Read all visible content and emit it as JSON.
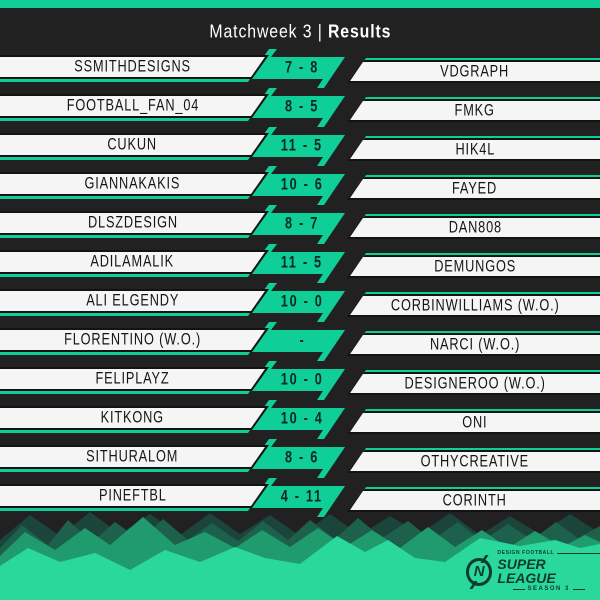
{
  "header": {
    "title_regular": "Matchweek 3",
    "separator": "|",
    "title_bold": "Results"
  },
  "rows": [
    {
      "home": "SSMITHDESIGNS",
      "score": "7 - 8",
      "away": "VDGRAPH"
    },
    {
      "home": "FOOTBALL_FAN_04",
      "score": "8 - 5",
      "away": "FMKG"
    },
    {
      "home": "CUKUN",
      "score": "11 - 5",
      "away": "HIK4L"
    },
    {
      "home": "GIANNAKAKIS",
      "score": "10 - 6",
      "away": "FAYED"
    },
    {
      "home": "DLSZDESIGN",
      "score": "8 - 7",
      "away": "DAN808"
    },
    {
      "home": "ADILAMALIK",
      "score": "11 - 5",
      "away": "DEMUNGOS"
    },
    {
      "home": "ALI ELGENDY",
      "score": "10 - 0",
      "away": "CORBINWILLIAMS (W.O.)"
    },
    {
      "home": "FLORENTINO (W.O.)",
      "score": "-",
      "away": "NARCI (W.O.)"
    },
    {
      "home": "FELIPLAYZ",
      "score": "10 - 0",
      "away": "DESIGNEROO (W.O.)"
    },
    {
      "home": "KITKONG",
      "score": "10 - 4",
      "away": "ONI"
    },
    {
      "home": "SITHURALOM",
      "score": "8 - 6",
      "away": "OTHYCREATIVE"
    },
    {
      "home": "PINEFTBL",
      "score": "4 - 11",
      "away": "CORINTH"
    }
  ],
  "footer_logo": {
    "badge_letter": "N",
    "brand_small": "DESIGN FOOTBALL",
    "brand_main": "SUPER LEAGUE",
    "brand_season": "SEASON 3"
  },
  "colors": {
    "accent": "#0FCE97",
    "background": "#212121",
    "paper": "#F5F5F5",
    "outline": "#131313",
    "ink": "#151515",
    "score_ink": "#0B2A20",
    "logo_ink": "#0D3B2F",
    "mountains": [
      "#1B443A",
      "#1D604B",
      "#1F9B6E",
      "#2BD89C"
    ]
  }
}
